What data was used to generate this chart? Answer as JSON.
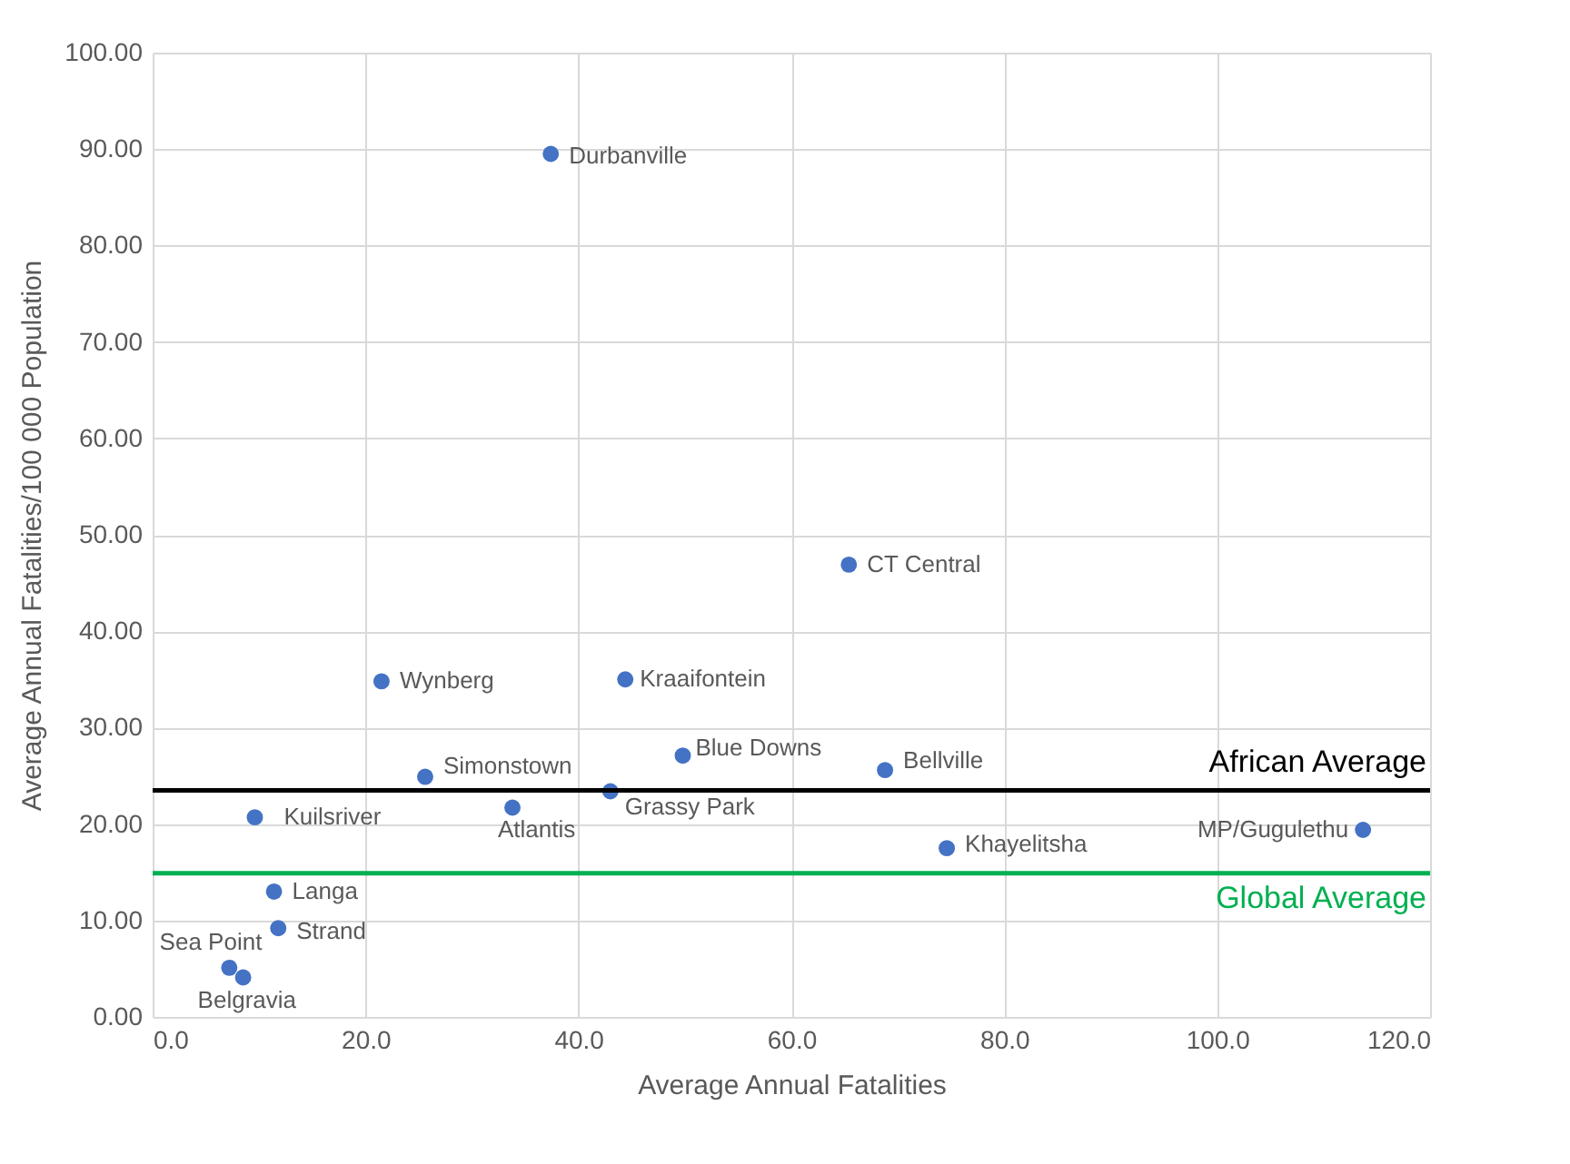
{
  "chart_data": {
    "type": "scatter",
    "xlabel": "Average Annual Fatalities",
    "ylabel": "Average Annual Fatalities/100 000 Population",
    "series": [
      {
        "color": "#4472c4",
        "x": [
          37.4,
          65.4,
          21.5,
          44.4,
          49.8,
          68.8,
          25.6,
          33.8,
          43.0,
          9.6,
          74.6,
          113.7,
          11.4,
          11.8,
          7.2,
          8.5
        ],
        "values": [
          89.5,
          46.9,
          34.8,
          35.0,
          27.1,
          25.6,
          24.9,
          21.7,
          23.4,
          20.7,
          17.5,
          19.4,
          13.0,
          9.2,
          5.1,
          4.1
        ]
      }
    ],
    "annotations": [
      {
        "text": "Durbanville",
        "x": 37.4,
        "y": 89.5
      },
      {
        "text": "CT Central",
        "x": 65.4,
        "y": 46.9
      },
      {
        "text": "Wynberg",
        "x": 21.5,
        "y": 34.8
      },
      {
        "text": "Kraaifontein",
        "x": 44.4,
        "y": 35.0
      },
      {
        "text": "Blue Downs",
        "x": 49.8,
        "y": 27.1
      },
      {
        "text": "Bellville",
        "x": 68.8,
        "y": 25.6
      },
      {
        "text": "Simonstown",
        "x": 25.6,
        "y": 24.9
      },
      {
        "text": "Atlantis",
        "x": 33.8,
        "y": 21.7
      },
      {
        "text": "Grassy Park",
        "x": 43.0,
        "y": 23.4
      },
      {
        "text": "Kuilsriver",
        "x": 9.6,
        "y": 20.7
      },
      {
        "text": "Khayelitsha",
        "x": 74.6,
        "y": 17.5
      },
      {
        "text": "MP/Gugulethu",
        "x": 113.7,
        "y": 19.4
      },
      {
        "text": "Langa",
        "x": 11.4,
        "y": 13.0
      },
      {
        "text": "Strand",
        "x": 11.8,
        "y": 9.2
      },
      {
        "text": "Sea Point",
        "x": 7.2,
        "y": 5.1
      },
      {
        "text": "Belgravia",
        "x": 8.5,
        "y": 4.1
      }
    ],
    "ref_lines": [
      {
        "axis": "y",
        "value": 23.5,
        "label": "African Average",
        "color": "#000000"
      },
      {
        "axis": "y",
        "value": 14.9,
        "label": "Global Average",
        "color": "#00b050"
      }
    ],
    "xlim": [
      0,
      120
    ],
    "xticks": [
      {
        "value": 0,
        "label": "0.0"
      },
      {
        "value": 20,
        "label": "20.0"
      },
      {
        "value": 40,
        "label": "40.0"
      },
      {
        "value": 60,
        "label": "60.0"
      },
      {
        "value": 80,
        "label": "80.0"
      },
      {
        "value": 100,
        "label": "100.0"
      },
      {
        "value": 120,
        "label": "120.0"
      }
    ],
    "ylim": [
      0,
      100
    ],
    "yticks": [
      {
        "value": 0,
        "label": "0.00"
      },
      {
        "value": 10,
        "label": "10.00"
      },
      {
        "value": 20,
        "label": "20.00"
      },
      {
        "value": 30,
        "label": "30.00"
      },
      {
        "value": 40,
        "label": "40.00"
      },
      {
        "value": 50,
        "label": "50.00"
      },
      {
        "value": 60,
        "label": "60.00"
      },
      {
        "value": 70,
        "label": "70.00"
      },
      {
        "value": 80,
        "label": "80.00"
      },
      {
        "value": 90,
        "label": "90.00"
      },
      {
        "value": 100,
        "label": "100.00"
      }
    ],
    "grid": true,
    "marker": "circle"
  }
}
